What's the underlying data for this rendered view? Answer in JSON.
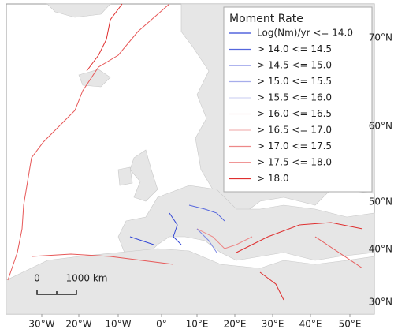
{
  "legend": {
    "title": "Moment Rate",
    "items": [
      {
        "label": "Log(Nm)/yr <= 14.0",
        "color": "#3347d6"
      },
      {
        "label": "> 14.0 <= 14.5",
        "color": "#5566dd"
      },
      {
        "label": "> 14.5 <= 15.0",
        "color": "#7d88e4"
      },
      {
        "label": "> 15.0 <= 15.5",
        "color": "#a6adeb"
      },
      {
        "label": "> 15.5 <= 16.0",
        "color": "#d2d5f4"
      },
      {
        "label": "> 16.0 <= 16.5",
        "color": "#f4dede"
      },
      {
        "label": "> 16.5 <= 17.0",
        "color": "#f2b6b6"
      },
      {
        "label": "> 17.0 <= 17.5",
        "color": "#ed8888"
      },
      {
        "label": "> 17.5 <= 18.0",
        "color": "#e75858"
      },
      {
        "label": "> 18.0",
        "color": "#df2f2f"
      }
    ]
  },
  "axes": {
    "x_labels": [
      "30°W",
      "20°W",
      "10°W",
      "0°",
      "10°E",
      "20°E",
      "30°E",
      "40°E",
      "50°E"
    ],
    "y_labels": [
      "70°N",
      "60°N",
      "50°N",
      "40°N",
      "30°N"
    ]
  },
  "scale_bar": {
    "start": "0",
    "end": "1000 km"
  }
}
